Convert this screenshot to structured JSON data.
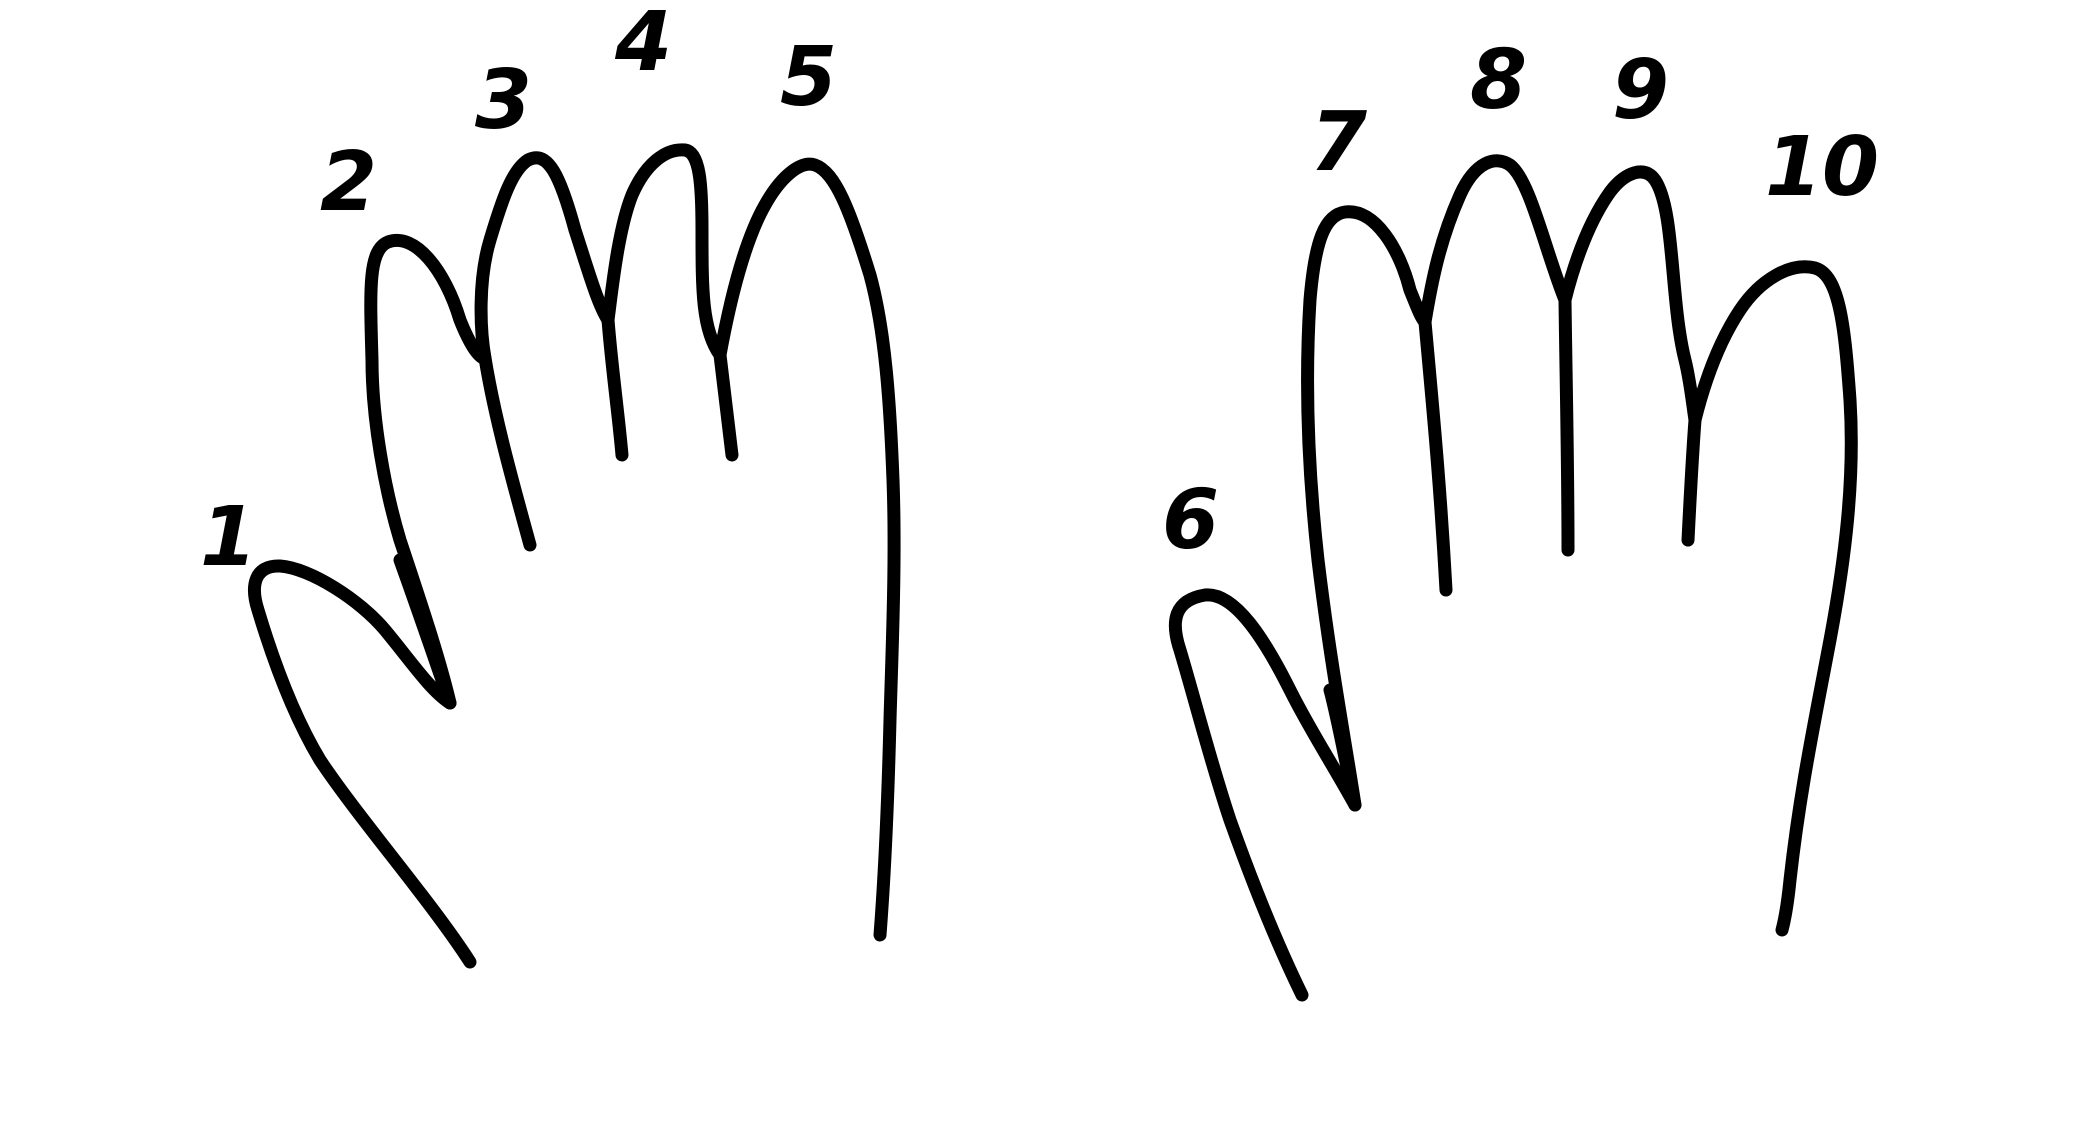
{
  "diagram": {
    "stroke_color": "#000000",
    "background_color": "#ffffff",
    "hands": [
      {
        "name": "left-hand",
        "finger_labels": [
          "1",
          "2",
          "3",
          "4",
          "5"
        ]
      },
      {
        "name": "right-hand",
        "finger_labels": [
          "6",
          "7",
          "8",
          "9",
          "10"
        ]
      }
    ]
  }
}
